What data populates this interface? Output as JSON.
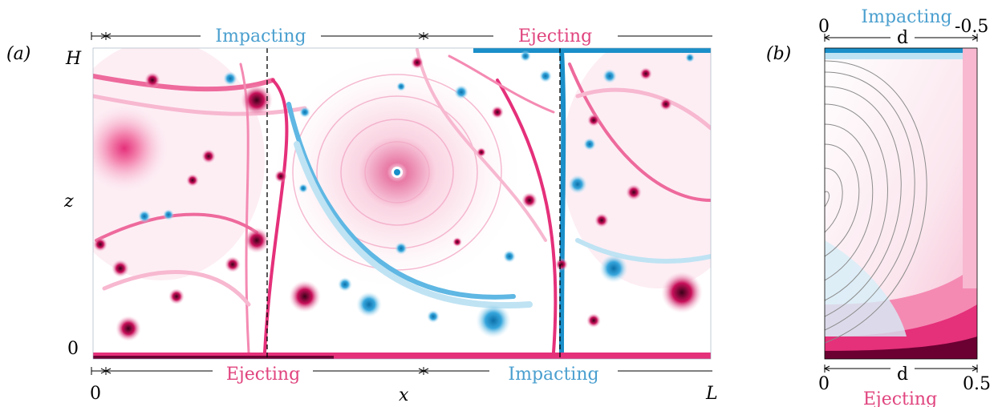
{
  "panel_a": {
    "label": "(a)",
    "top_left_label": "Impacting",
    "top_right_label": "Ejecting",
    "bottom_left_label": "Ejecting",
    "bottom_right_label": "Impacting",
    "z_top_tick": "H",
    "z_bottom_tick": "0",
    "z_axis_label": "z",
    "x_left_tick": "0",
    "x_axis_label": "x",
    "x_right_tick": "L"
  },
  "panel_b": {
    "label": "(b)",
    "top_label": "Impacting",
    "top_left_tick": "0",
    "top_right_tick": "-0.5",
    "top_span_label": "d",
    "bottom_left_tick": "0",
    "bottom_right_tick": "0.5",
    "bottom_span_label": "d",
    "bottom_label": "Ejecting"
  },
  "colors": {
    "positive_dark": "#6b0032",
    "positive": "#e5307a",
    "positive_light": "#f7b8d0",
    "negative": "#1a8fc9",
    "negative_light": "#bfe3f3",
    "impacting_text": "#4a9fcf",
    "ejecting_text": "#e0447e"
  }
}
